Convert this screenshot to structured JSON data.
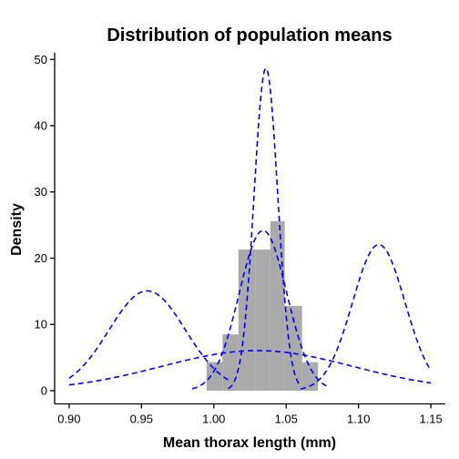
{
  "chart_data": {
    "type": "histogram",
    "title": "Distribution of population means",
    "xlabel": "Mean thorax length (mm)",
    "ylabel": "Density",
    "xlim": [
      0.89,
      1.16
    ],
    "ylim": [
      -2,
      51
    ],
    "x_ticks": [
      0.9,
      0.95,
      1.0,
      1.05,
      1.1,
      1.15
    ],
    "x_tick_labels": [
      "0.90",
      "0.95",
      "1.00",
      "1.05",
      "1.10",
      "1.15"
    ],
    "y_ticks": [
      0,
      10,
      20,
      30,
      40,
      50
    ],
    "y_tick_labels": [
      "0",
      "10",
      "20",
      "30",
      "40",
      "50"
    ],
    "grid": false,
    "bar_color": "#aaaaaa",
    "histogram": {
      "bins": [
        {
          "x0": 0.995,
          "x1": 1.006,
          "density": 4.3
        },
        {
          "x0": 1.006,
          "x1": 1.017,
          "density": 8.5
        },
        {
          "x0": 1.017,
          "x1": 1.029,
          "density": 21.3
        },
        {
          "x0": 1.029,
          "x1": 1.039,
          "density": 21.3
        },
        {
          "x0": 1.039,
          "x1": 1.049,
          "density": 25.6
        },
        {
          "x0": 1.049,
          "x1": 1.061,
          "density": 12.8
        },
        {
          "x0": 1.061,
          "x1": 1.072,
          "density": 4.3
        }
      ]
    },
    "curve_color": "#0000ff",
    "curves": [
      {
        "type": "normal",
        "mean": 0.954,
        "sd": 0.0265,
        "x_range": [
          0.9,
          1.01
        ]
      },
      {
        "type": "normal",
        "mean": 1.114,
        "sd": 0.0181,
        "x_range": [
          1.06,
          1.15
        ]
      },
      {
        "type": "normal",
        "mean": 1.036,
        "sd": 0.0082,
        "x_range": [
          1.01,
          1.06
        ]
      },
      {
        "type": "normal",
        "mean": 1.034,
        "sd": 0.0165,
        "x_range": [
          0.985,
          1.08
        ]
      },
      {
        "type": "normal",
        "mean": 1.03,
        "sd": 0.066,
        "x_range": [
          0.9,
          1.15
        ]
      }
    ]
  }
}
